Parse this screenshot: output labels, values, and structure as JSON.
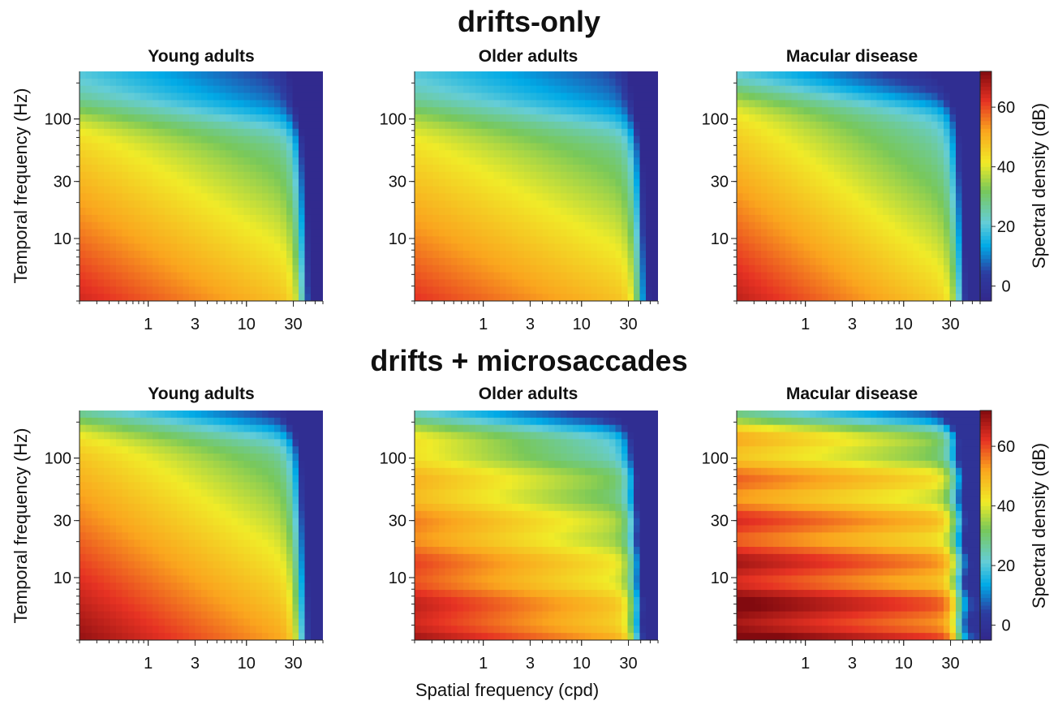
{
  "figure": {
    "sections": [
      {
        "title": "drifts-only"
      },
      {
        "title": "drifts + microsaccades"
      }
    ],
    "panel_titles": [
      "Young adults",
      "Older adults",
      "Macular disease"
    ],
    "ylabel": "Temporal frequency (Hz)",
    "xlabel": "Spatial frequency (cpd)",
    "colorbar_label": "Spectral density (dB)",
    "x_ticks": [
      "1",
      "3",
      "10",
      "30"
    ],
    "y_ticks": [
      "100",
      "30",
      "10"
    ],
    "colorbar_ticks": [
      "60",
      "40",
      "20",
      "0"
    ]
  },
  "chart_data": [
    {
      "type": "heatmap",
      "section": "drifts-only",
      "title": "Young adults",
      "x_scale": "log",
      "y_scale": "log",
      "xlim": [
        0.2,
        60
      ],
      "ylim": [
        3,
        250
      ],
      "zlim": [
        -5,
        72
      ],
      "z_units": "dB",
      "model": {
        "base": 64,
        "z_floor": 4,
        "xcut": 38,
        "ycut": 110,
        "ycut_shift": 0.8,
        "slope": 8,
        "ripple": 0
      },
      "colorbar": false
    },
    {
      "type": "heatmap",
      "section": "drifts-only",
      "title": "Older adults",
      "x_scale": "log",
      "y_scale": "log",
      "xlim": [
        0.2,
        60
      ],
      "ylim": [
        3,
        250
      ],
      "zlim": [
        -5,
        72
      ],
      "z_units": "dB",
      "model": {
        "base": 62,
        "z_floor": 4,
        "xcut": 40,
        "ycut": 110,
        "ycut_shift": 0.7,
        "slope": 7,
        "ripple": 0
      },
      "colorbar": false
    },
    {
      "type": "heatmap",
      "section": "drifts-only",
      "title": "Macular disease",
      "x_scale": "log",
      "y_scale": "log",
      "xlim": [
        0.2,
        60
      ],
      "ylim": [
        3,
        250
      ],
      "zlim": [
        -5,
        72
      ],
      "z_units": "dB",
      "model": {
        "base": 66,
        "z_floor": 6,
        "xcut": 38,
        "ycut": 160,
        "ycut_shift": 1.0,
        "slope": 10,
        "ripple": 0
      },
      "colorbar": true
    },
    {
      "type": "heatmap",
      "section": "drifts + microsaccades",
      "title": "Young adults",
      "x_scale": "log",
      "y_scale": "log",
      "xlim": [
        0.2,
        60
      ],
      "ylim": [
        3,
        250
      ],
      "zlim": [
        -5,
        72
      ],
      "z_units": "dB",
      "model": {
        "base": 70,
        "z_floor": 6,
        "xcut": 36,
        "ycut": 200,
        "ycut_shift": 1.2,
        "slope": 9,
        "ripple": 0
      },
      "colorbar": false
    },
    {
      "type": "heatmap",
      "section": "drifts + microsaccades",
      "title": "Older adults",
      "x_scale": "log",
      "y_scale": "log",
      "xlim": [
        0.2,
        60
      ],
      "ylim": [
        3,
        250
      ],
      "zlim": [
        -5,
        72
      ],
      "z_units": "dB",
      "model": {
        "base": 68,
        "z_floor": 6,
        "xcut": 36,
        "ycut": 200,
        "ycut_shift": 1.2,
        "slope": 9,
        "ripple": 2
      },
      "colorbar": false
    },
    {
      "type": "heatmap",
      "section": "drifts + microsaccades",
      "title": "Macular disease",
      "x_scale": "log",
      "y_scale": "log",
      "xlim": [
        0.2,
        60
      ],
      "ylim": [
        3,
        250
      ],
      "zlim": [
        -5,
        72
      ],
      "z_units": "dB",
      "model": {
        "base": 74,
        "z_floor": 8,
        "xcut": 36,
        "ycut": 220,
        "ycut_shift": 1.4,
        "slope": 7,
        "ripple": 4
      },
      "colorbar": true
    }
  ]
}
